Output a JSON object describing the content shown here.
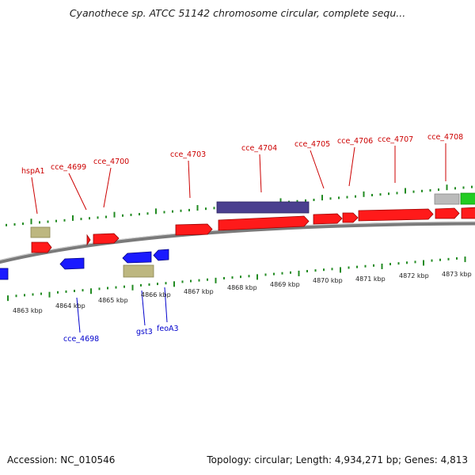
{
  "title": "Cyanothece sp. ATCC 51142 chromosome circular, complete sequ...",
  "footer": {
    "accession": "Accession: NC_010546",
    "summary": "Topology: circular; Length: 4,934,271 bp; Genes: 4,813"
  },
  "colors": {
    "forward_gene": "#ff1a1a",
    "reverse_gene": "#1a1aff",
    "rna_gene": "#bdb780",
    "feature_band": "#4a3f8f",
    "grey_feature": "#bbbbbb",
    "green_feature": "#22cc22",
    "tick": "#228b22",
    "upper_label": "#cc0000",
    "lower_label": "#0000cc",
    "backbone": "#8c8c8c"
  },
  "kbp_labels": [
    "4863 kbp",
    "4864 kbp",
    "4865 kbp",
    "4866 kbp",
    "4867 kbp",
    "4868 kbp",
    "4869 kbp",
    "4870 kbp",
    "4871 kbp",
    "4872 kbp",
    "4873 kbp"
  ],
  "upper_gene_labels": [
    "hspA1",
    "cce_4699",
    "cce_4700",
    "cce_4703",
    "cce_4704",
    "cce_4705",
    "cce_4706",
    "cce_4707",
    "cce_4708"
  ],
  "lower_gene_labels": [
    "cce_4698",
    "gst3",
    "feoA3"
  ]
}
